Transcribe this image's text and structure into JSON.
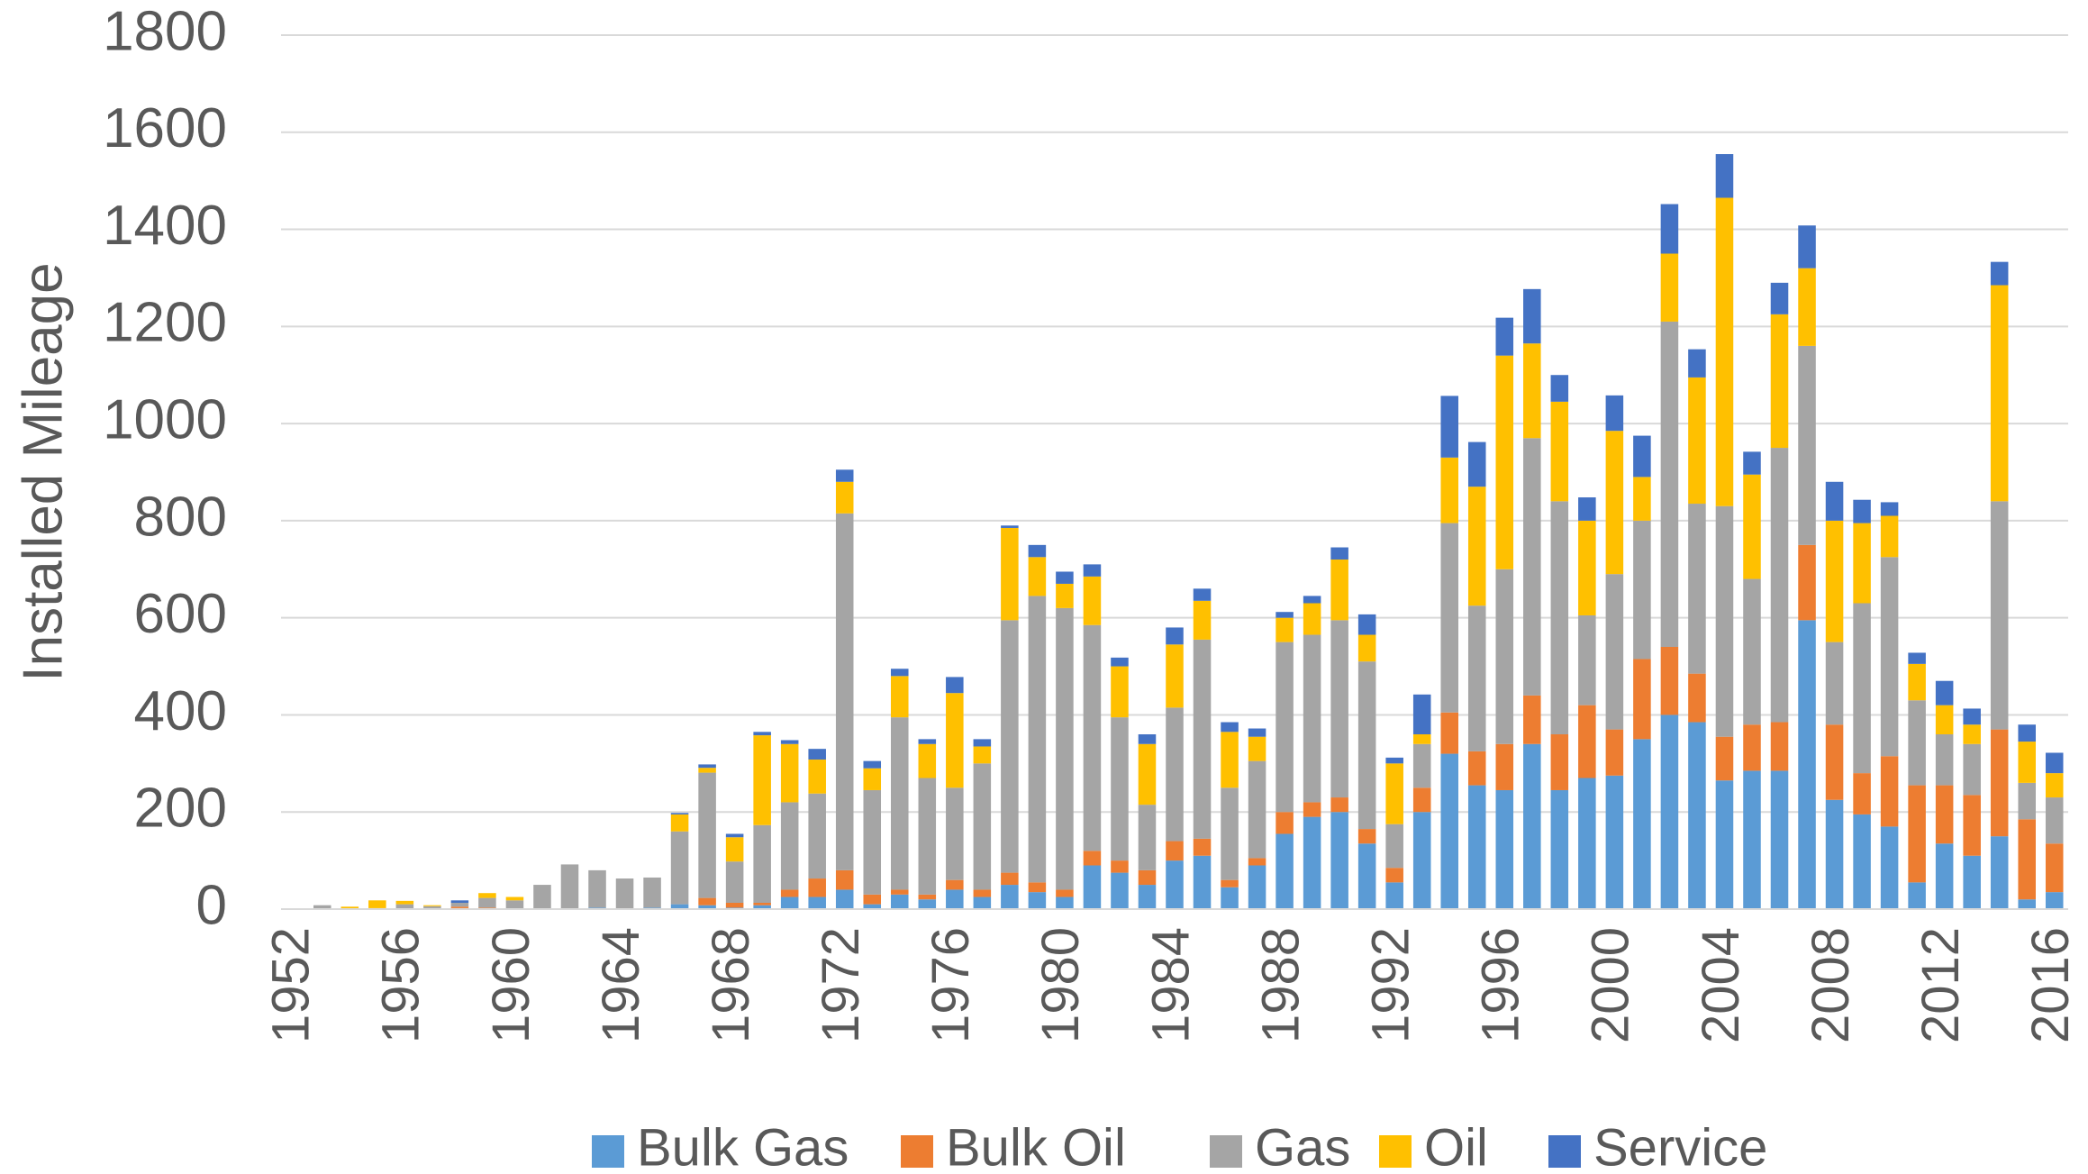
{
  "chart_data": {
    "type": "stacked-bar",
    "y_label": "Installed Mileage",
    "categories": [
      "1952",
      null,
      null,
      null,
      "1956",
      null,
      null,
      null,
      "1960",
      null,
      null,
      null,
      "1964",
      null,
      null,
      null,
      "1968",
      null,
      null,
      null,
      "1972",
      null,
      null,
      null,
      "1976",
      null,
      null,
      null,
      "1980",
      null,
      null,
      null,
      "1984",
      null,
      null,
      null,
      "1988",
      null,
      null,
      null,
      "1992",
      null,
      null,
      null,
      "1996",
      null,
      null,
      null,
      "2000",
      null,
      null,
      null,
      "2004",
      null,
      null,
      null,
      "2008",
      null,
      null,
      null,
      "2012",
      null,
      null,
      null,
      "2016"
    ],
    "series": [
      {
        "name": "Bulk Gas",
        "color": "#5b9bd5",
        "values": [
          0,
          0,
          0,
          0,
          0,
          0,
          2,
          0,
          0,
          0,
          0,
          3,
          0,
          3,
          10,
          8,
          3,
          8,
          25,
          25,
          40,
          10,
          30,
          20,
          40,
          25,
          50,
          35,
          25,
          90,
          75,
          50,
          100,
          110,
          45,
          90,
          155,
          190,
          200,
          135,
          55,
          200,
          320,
          255,
          245,
          340,
          245,
          270,
          275,
          350,
          400,
          385,
          265,
          285,
          285,
          595,
          225,
          195,
          170,
          55,
          135,
          110,
          150,
          20,
          35
        ]
      },
      {
        "name": "Bulk Oil",
        "color": "#ed7d31",
        "values": [
          0,
          0,
          0,
          0,
          0,
          0,
          3,
          3,
          0,
          0,
          0,
          0,
          0,
          0,
          0,
          15,
          10,
          5,
          15,
          38,
          40,
          20,
          10,
          10,
          20,
          15,
          25,
          20,
          15,
          30,
          25,
          30,
          40,
          35,
          15,
          15,
          45,
          30,
          30,
          30,
          30,
          50,
          85,
          70,
          95,
          100,
          115,
          150,
          95,
          165,
          140,
          100,
          90,
          95,
          100,
          155,
          155,
          85,
          145,
          200,
          120,
          125,
          220,
          165,
          100
        ]
      },
      {
        "name": "Gas",
        "color": "#a5a5a5",
        "values": [
          0,
          8,
          0,
          2,
          10,
          6,
          8,
          20,
          18,
          50,
          92,
          77,
          63,
          62,
          150,
          258,
          85,
          160,
          180,
          175,
          735,
          215,
          355,
          240,
          190,
          260,
          520,
          590,
          580,
          465,
          295,
          135,
          275,
          410,
          190,
          200,
          350,
          345,
          365,
          345,
          90,
          90,
          390,
          300,
          360,
          530,
          480,
          185,
          320,
          285,
          670,
          350,
          475,
          300,
          565,
          410,
          170,
          350,
          410,
          175,
          105,
          105,
          470,
          75,
          95
        ]
      },
      {
        "name": "Oil",
        "color": "#ffc000",
        "values": [
          0,
          0,
          5,
          16,
          7,
          2,
          0,
          10,
          7,
          0,
          0,
          0,
          0,
          0,
          35,
          10,
          50,
          185,
          120,
          70,
          65,
          45,
          85,
          70,
          195,
          35,
          190,
          80,
          50,
          100,
          105,
          125,
          130,
          80,
          115,
          50,
          50,
          65,
          125,
          55,
          125,
          20,
          135,
          245,
          440,
          195,
          205,
          195,
          295,
          90,
          140,
          260,
          635,
          215,
          275,
          160,
          250,
          165,
          85,
          75,
          60,
          40,
          445,
          85,
          50
        ]
      },
      {
        "name": "Service",
        "color": "#4472c4",
        "values": [
          0,
          0,
          0,
          0,
          0,
          0,
          5,
          0,
          0,
          0,
          0,
          0,
          0,
          0,
          3,
          7,
          7,
          7,
          8,
          22,
          25,
          15,
          15,
          10,
          33,
          15,
          5,
          25,
          25,
          25,
          18,
          20,
          35,
          25,
          20,
          17,
          12,
          15,
          25,
          42,
          12,
          82,
          127,
          92,
          78,
          112,
          55,
          48,
          73,
          85,
          102,
          58,
          90,
          47,
          65,
          88,
          80,
          48,
          28,
          23,
          50,
          33,
          48,
          35,
          42
        ]
      }
    ],
    "ylim": [
      0,
      1800
    ],
    "yticks": [
      0,
      200,
      400,
      600,
      800,
      1000,
      1200,
      1400,
      1600,
      1800
    ],
    "grid": true,
    "legend": "bottom"
  }
}
